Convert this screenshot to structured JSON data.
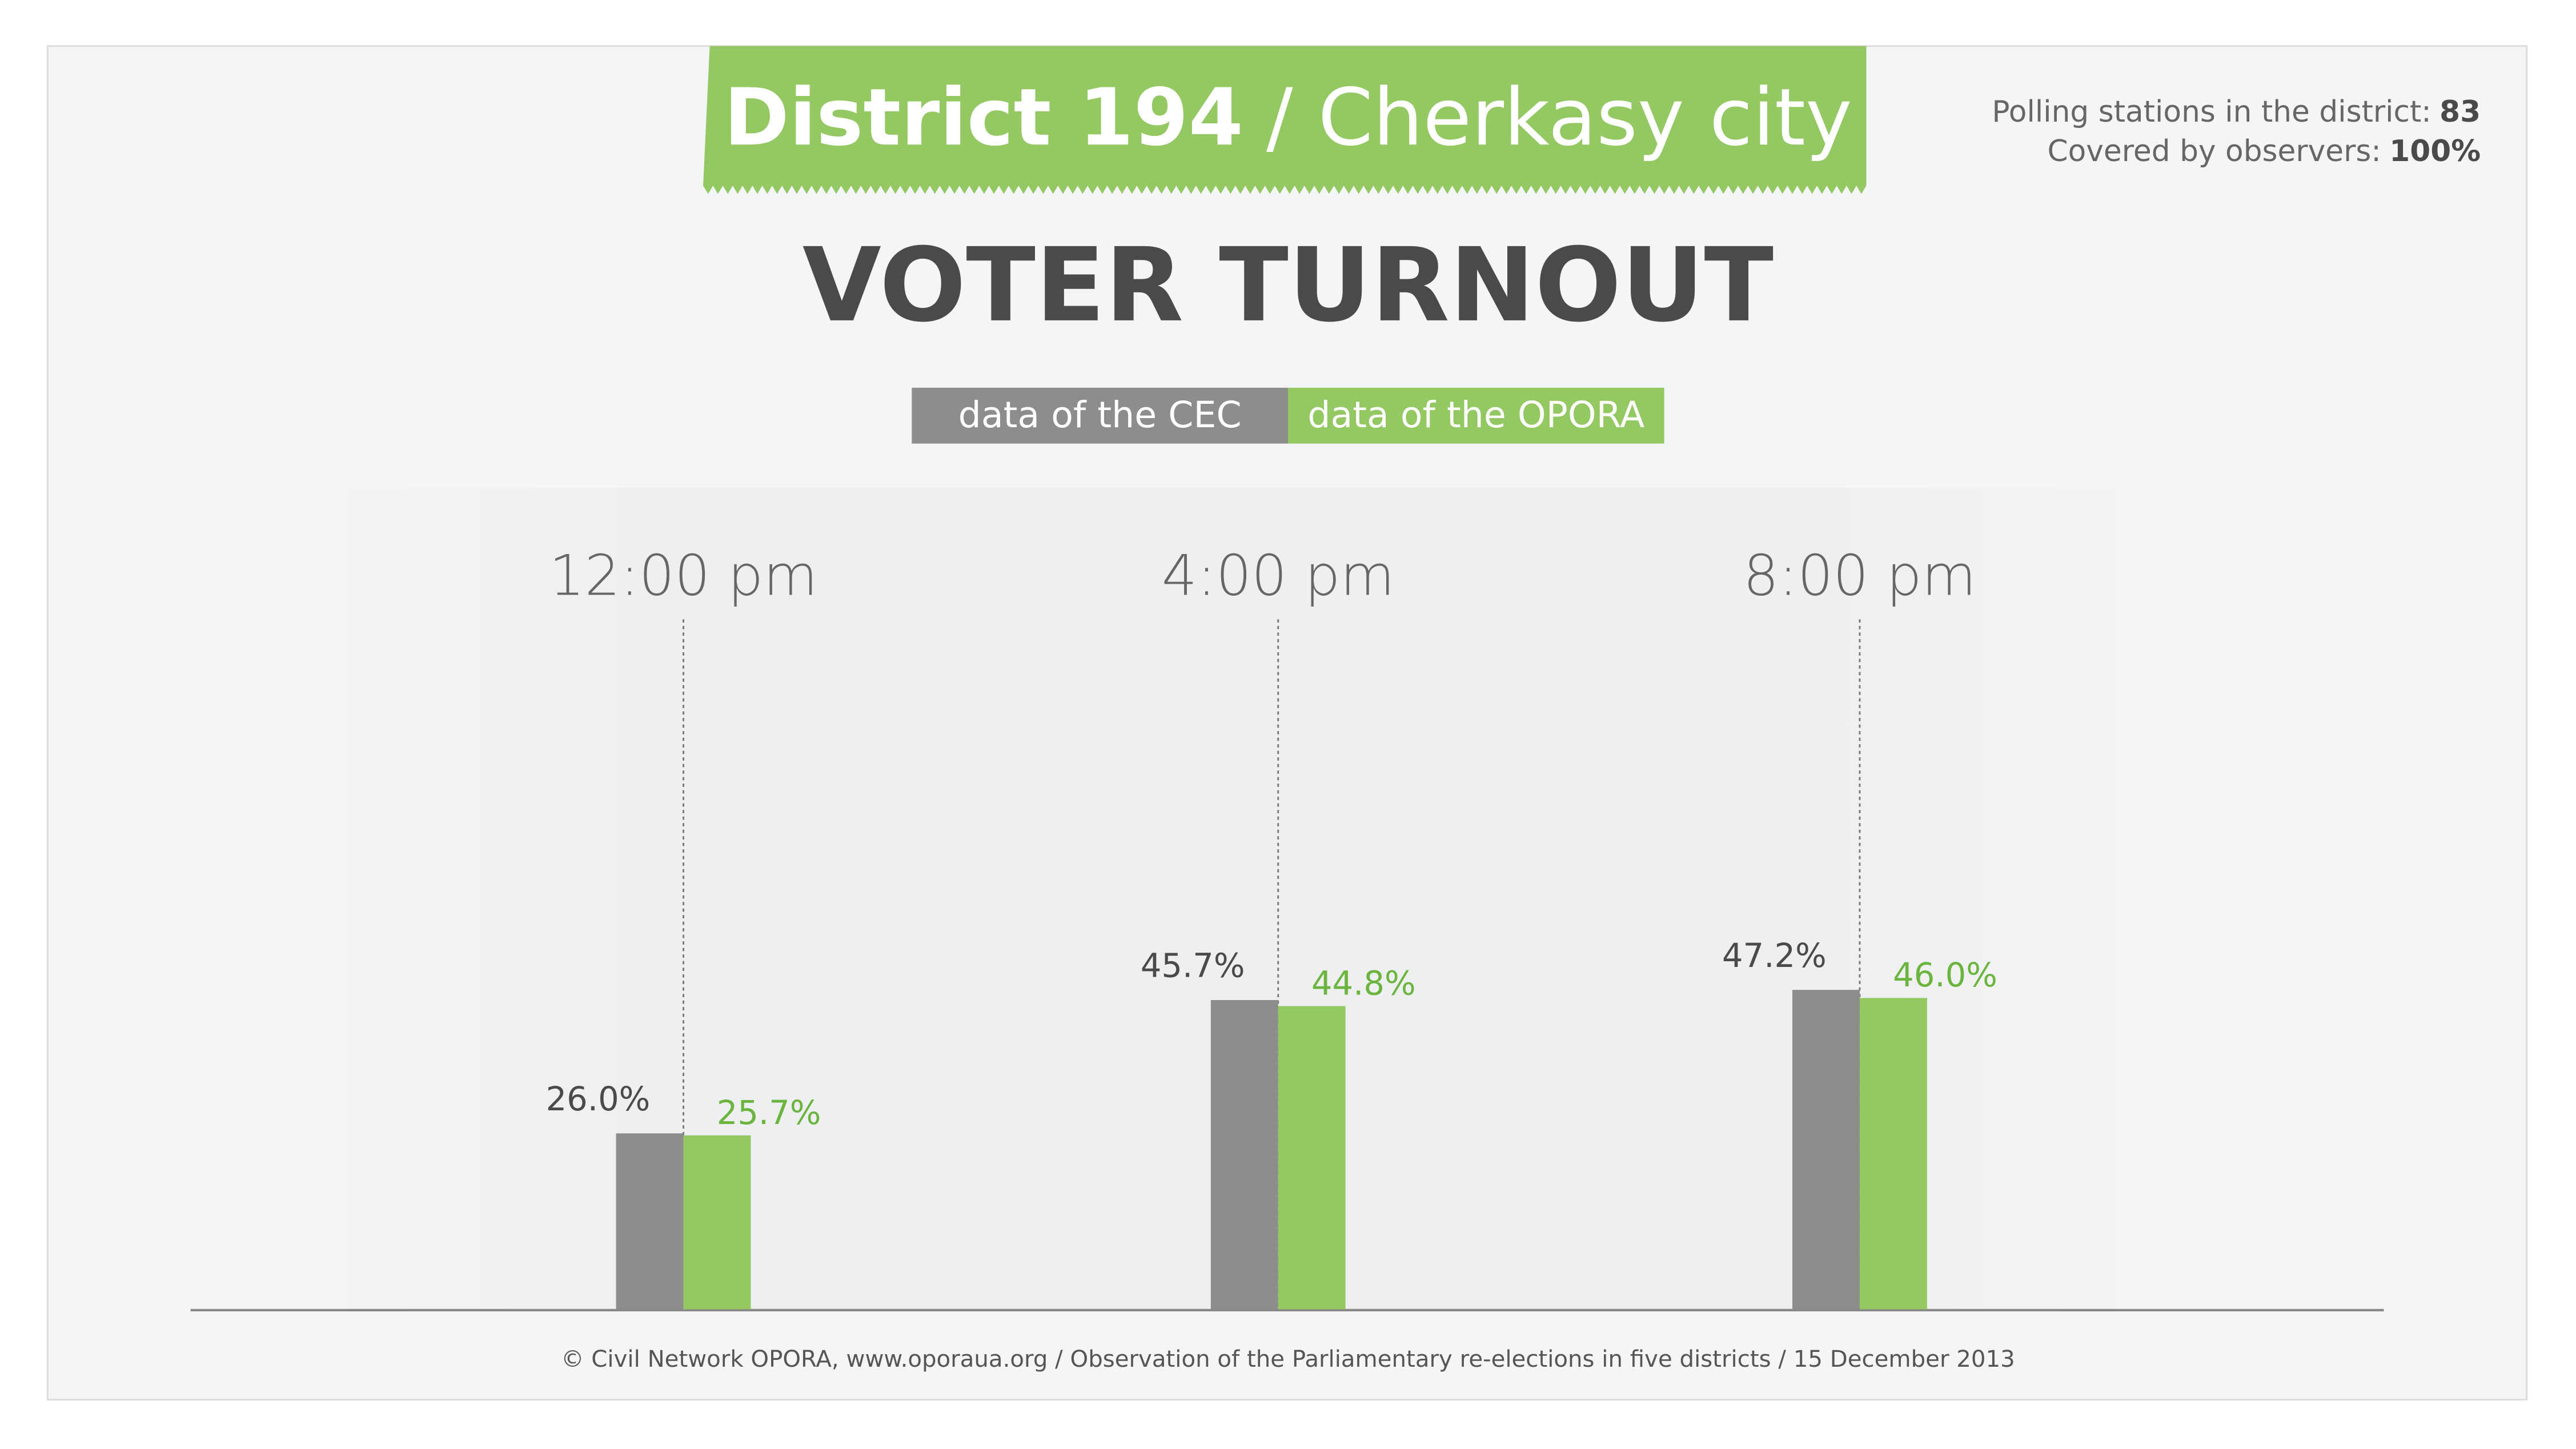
{
  "chart_data": {
    "type": "bar",
    "title": "District 194",
    "title_place": "/ Cherkasy city",
    "subtitle": "VOTER TURNOUT",
    "stats": [
      {
        "label": "Polling stations in the district:",
        "value": "83"
      },
      {
        "label": "Covered by observers:",
        "value": "100%"
      }
    ],
    "categories": [
      "12:00 pm",
      "4:00 pm",
      "8:00 pm"
    ],
    "series": [
      {
        "name": "data of the CEC",
        "color": "#8f8d8b",
        "label_color": "#4a4a4a",
        "values": [
          26.0,
          45.7,
          47.2
        ],
        "value_labels": [
          "26.0%",
          "45.7%",
          "47.2%"
        ]
      },
      {
        "name": "data of the OPORA",
        "color": "#93c862",
        "label_color": "#6bb43d",
        "values": [
          25.7,
          44.8,
          46.0
        ],
        "value_labels": [
          "25.7%",
          "44.8%",
          "46.0%"
        ]
      }
    ],
    "footer": "© Civil Network OPORA, www.oporaua.org / Observation of the Parliamentary re-elections  in five districts / 15 December 2013"
  }
}
